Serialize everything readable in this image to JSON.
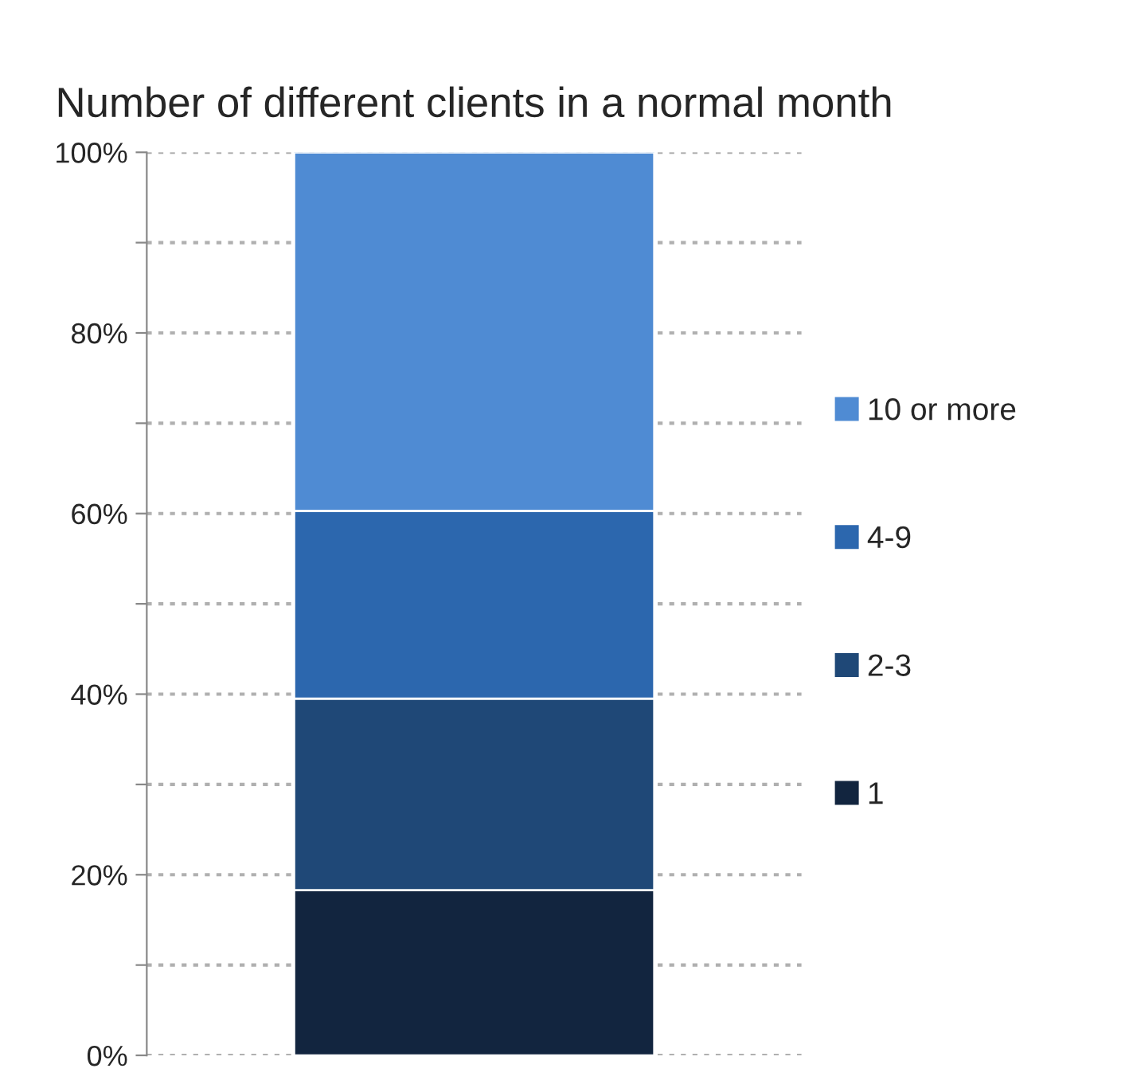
{
  "chart_data": {
    "type": "bar",
    "title": "Number of different clients in a normal month",
    "stacked": true,
    "categories": [
      null
    ],
    "series": [
      {
        "name": "1",
        "color": "#12253f",
        "values": [
          18.3
        ]
      },
      {
        "name": "2-3",
        "color": "#1f4877",
        "values": [
          21.2
        ]
      },
      {
        "name": "4-9",
        "color": "#2c67ae",
        "values": [
          20.8
        ]
      },
      {
        "name": "10 or more",
        "color": "#4f8bd3",
        "values": [
          39.7
        ]
      }
    ],
    "ylim": [
      0,
      100
    ],
    "yticks": [
      {
        "value": 0,
        "label": "0%"
      },
      {
        "value": 10,
        "label": null
      },
      {
        "value": 20,
        "label": "20%"
      },
      {
        "value": 30,
        "label": null
      },
      {
        "value": 40,
        "label": "40%"
      },
      {
        "value": 50,
        "label": null
      },
      {
        "value": 60,
        "label": "60%"
      },
      {
        "value": 70,
        "label": null
      },
      {
        "value": 80,
        "label": "80%"
      },
      {
        "value": 90,
        "label": null
      },
      {
        "value": 100,
        "label": "100%"
      }
    ],
    "grid": "y",
    "legend": "right",
    "tick_labels": "y"
  }
}
